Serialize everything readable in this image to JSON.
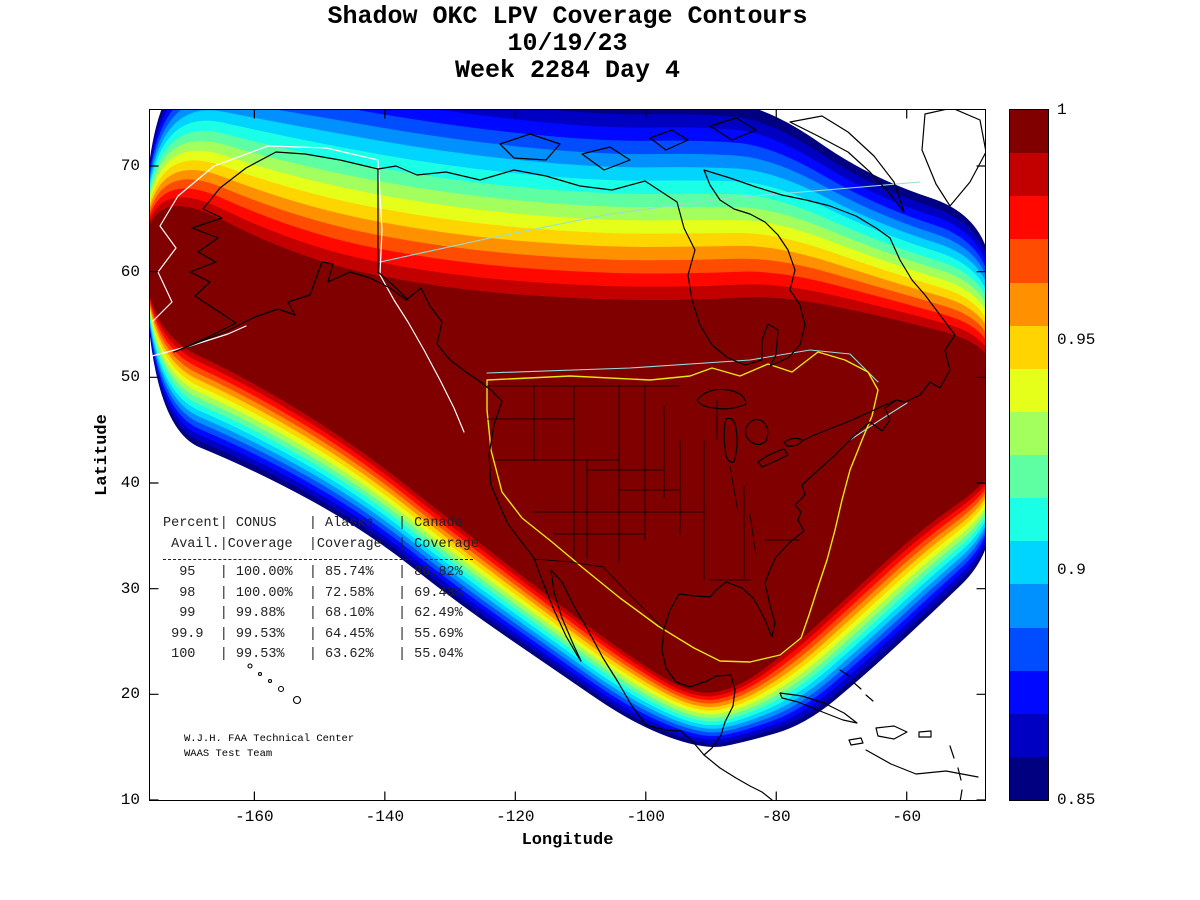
{
  "title": {
    "line1": "Shadow OKC LPV Coverage Contours",
    "line2": "10/19/23",
    "line3": "Week 2284 Day 4"
  },
  "axes": {
    "xlabel": "Longitude",
    "ylabel": "Latitude",
    "x_ticks": [
      "-160",
      "-140",
      "-120",
      "-100",
      "-80",
      "-60"
    ],
    "y_ticks": [
      "70",
      "60",
      "50",
      "40",
      "30",
      "20",
      "10"
    ]
  },
  "colorbar": {
    "ticks": [
      "1",
      "0.95",
      "0.9",
      "0.85"
    ]
  },
  "coverage_table": {
    "lines": [
      "Percent| CONUS    | Alaska   | Canada",
      " Avail.|Coverage  |Coverage  | Coverage",
      "  95   | 100.00%  | 85.74%   | 86.82%",
      "  98   | 100.00%  | 72.58%   | 69.43%",
      "  99   | 99.88%   | 68.10%   | 62.49%",
      " 99.9  | 99.53%   | 64.45%   | 55.69%",
      " 100   | 99.53%   | 63.62%   | 55.04%"
    ]
  },
  "credit": {
    "line1": "W.J.H. FAA Technical Center",
    "line2": "WAAS Test Team"
  },
  "map_colors": {
    "coastline": "#000000",
    "state_lines": "#000000",
    "conus_boundary": "#e8e816",
    "alaska_boundary": "#ffffff",
    "canada_boundary": "#96dcdc"
  },
  "chart_data": {
    "type": "heatmap",
    "title": "Shadow OKC LPV Coverage Contours",
    "subtitle": "10/19/23 - Week 2284 Day 4",
    "xlabel": "Longitude",
    "ylabel": "Latitude",
    "xlim": [
      -176,
      -48
    ],
    "ylim": [
      10,
      75.3
    ],
    "colormap": "jet",
    "color_range": [
      0.85,
      1.0
    ],
    "colorbar_ticks": [
      1,
      0.95,
      0.9,
      0.85
    ],
    "contour_description": "Filled contours of WAAS LPV availability over North America: >=0.99 (dark red) over CONUS, Alaska and most of Canada, decreasing through red-orange-yellow-green-cyan-blue bands to 0.85 (dark blue) toward the Arctic (~72N), the Pacific southwest fringe, the Caribbean (~20N) and the North Atlantic edge",
    "table": {
      "columns": [
        "Percent Avail.",
        "CONUS Coverage",
        "Alaska Coverage",
        "Canada Coverage"
      ],
      "rows": [
        [
          "95",
          "100.00%",
          "85.74%",
          "86.82%"
        ],
        [
          "98",
          "100.00%",
          "72.58%",
          "69.43%"
        ],
        [
          "99",
          "99.88%",
          "68.10%",
          "62.49%"
        ],
        [
          "99.9",
          "99.53%",
          "64.45%",
          "55.69%"
        ],
        [
          "100",
          "99.53%",
          "63.62%",
          "55.04%"
        ]
      ]
    },
    "annotations": [
      "W.J.H. FAA Technical Center",
      "WAAS Test Team"
    ]
  }
}
